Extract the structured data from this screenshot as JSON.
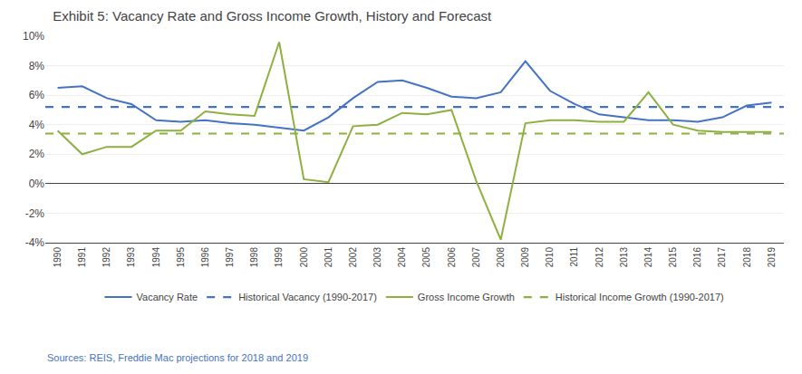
{
  "chart_data": {
    "type": "line",
    "title": "Exhibit 5: Vacancy Rate and Gross Income Growth, History and Forecast",
    "x": [
      1990,
      1991,
      1992,
      1993,
      1994,
      1995,
      1996,
      1997,
      1998,
      1999,
      2000,
      2001,
      2002,
      2003,
      2004,
      2005,
      2006,
      2007,
      2008,
      2009,
      2010,
      2011,
      2012,
      2013,
      2014,
      2015,
      2016,
      2017,
      2018,
      2019
    ],
    "series": [
      {
        "name": "Vacancy Rate",
        "color": "#4472C4",
        "line_style": "solid",
        "values": [
          6.5,
          6.6,
          5.8,
          5.4,
          4.3,
          4.2,
          4.3,
          4.1,
          4.0,
          3.8,
          3.6,
          4.5,
          5.8,
          6.9,
          7.0,
          6.5,
          5.9,
          5.8,
          6.2,
          8.3,
          6.3,
          5.4,
          4.7,
          4.5,
          4.3,
          4.3,
          4.2,
          4.5,
          5.3,
          5.5
        ]
      },
      {
        "name": "Gross Income Growth",
        "color": "#8DB040",
        "line_style": "solid",
        "values": [
          3.6,
          2.0,
          2.5,
          2.5,
          3.6,
          3.6,
          4.9,
          4.7,
          4.6,
          9.6,
          0.3,
          0.1,
          3.9,
          4.0,
          4.8,
          4.7,
          5.0,
          0.2,
          -3.8,
          4.1,
          4.3,
          4.3,
          4.2,
          4.2,
          6.2,
          4.0,
          3.6,
          3.5,
          3.5,
          3.5
        ]
      }
    ],
    "reference_lines": [
      {
        "name": "Historical Vacancy (1990-2017)",
        "value": 5.2,
        "color": "#4472C4",
        "line_style": "dashed"
      },
      {
        "name": "Historical Income Growth (1990-2017)",
        "value": 3.4,
        "color": "#8DB040",
        "line_style": "dashed"
      }
    ],
    "xlim": [
      1989.5,
      2019.5
    ],
    "xticks": [
      1990,
      1991,
      1992,
      1993,
      1994,
      1995,
      1996,
      1997,
      1998,
      1999,
      2000,
      2001,
      2002,
      2003,
      2004,
      2005,
      2006,
      2007,
      2008,
      2009,
      2010,
      2011,
      2012,
      2013,
      2014,
      2015,
      2016,
      2017,
      2018,
      2019
    ],
    "ylim": [
      -4,
      10
    ],
    "yticks": [
      {
        "value": -4,
        "label": "-4%"
      },
      {
        "value": -2,
        "label": "-2%"
      },
      {
        "value": 0,
        "label": "0%"
      },
      {
        "value": 2,
        "label": "2%"
      },
      {
        "value": 4,
        "label": "4%"
      },
      {
        "value": 6,
        "label": "6%"
      },
      {
        "value": 8,
        "label": "8%"
      },
      {
        "value": 10,
        "label": "10%"
      }
    ],
    "grid": true,
    "legend": "bottom",
    "annotations": [
      {
        "text": "Sources: REIS, Freddie Mac projections for 2018 and 2019",
        "color": "#4472C4"
      }
    ]
  }
}
